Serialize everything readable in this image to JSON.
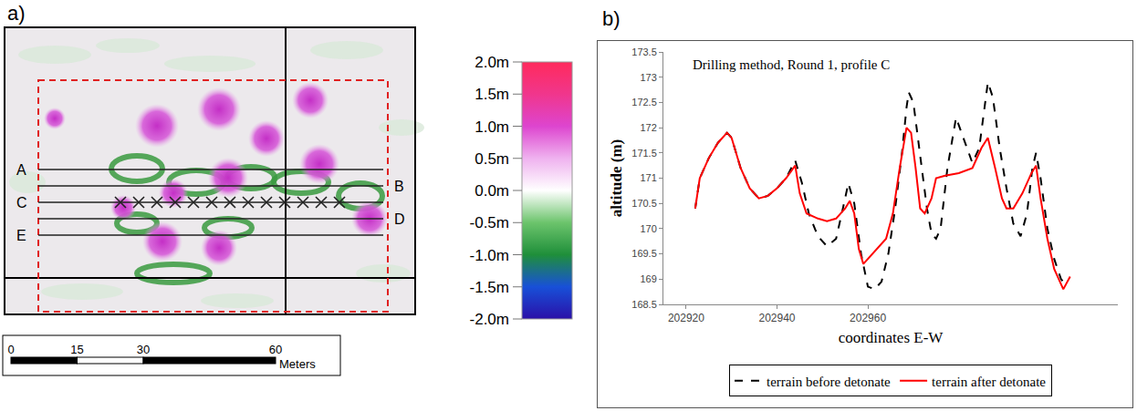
{
  "panel_letters": [
    "a)",
    "b)"
  ],
  "map": {
    "profile_lines": [
      "A",
      "B",
      "C",
      "D",
      "E"
    ],
    "colorbar": {
      "range": [
        -2,
        2
      ],
      "ticks": [
        {
          "value": 2,
          "label": "2.0m"
        },
        {
          "value": 1.5,
          "label": "1.5m"
        },
        {
          "value": 1,
          "label": "1.0m"
        },
        {
          "value": 0.5,
          "label": "0.5m"
        },
        {
          "value": 0,
          "label": "0.0m"
        },
        {
          "value": -0.5,
          "label": "-0.5m"
        },
        {
          "value": -1,
          "label": "-1.0m"
        },
        {
          "value": -1.5,
          "label": "-1.5m"
        },
        {
          "value": -2,
          "label": "-2.0m"
        }
      ]
    },
    "scale_bar": {
      "ticks": [
        0,
        15,
        30,
        60
      ],
      "unit": "Meters"
    }
  },
  "chart_data": {
    "type": "line",
    "title": "Drilling method, Round 1, profile C",
    "x_label": "coordinates E-W",
    "y_label": "altitude (m)",
    "xlim": [
      202915,
      203015
    ],
    "xticks": [
      202920,
      202940,
      202960
    ],
    "ylim": [
      168.5,
      173.5
    ],
    "yticks": [
      168.5,
      169,
      169.5,
      170,
      170.5,
      171,
      171.5,
      172,
      172.5,
      173,
      173.5
    ],
    "grid": false,
    "legend": "bottom",
    "series": [
      {
        "name": "terrain before detonate",
        "color": "#000000",
        "line_style": "dashed",
        "x": [
          202922,
          202923,
          202925,
          202927,
          202929,
          202930,
          202932,
          202934,
          202936,
          202938,
          202940,
          202942,
          202944,
          202945.5,
          202947,
          202949,
          202951,
          202953,
          202954.5,
          202955.7,
          202957,
          202958.5,
          202960,
          202961.5,
          202963,
          202964.5,
          202966,
          202967.5,
          202968.5,
          202969,
          202970,
          202971.5,
          202973,
          202974,
          202975,
          202976,
          202977.5,
          202979.4,
          202981,
          202983,
          202984.5,
          202986.4,
          202987.5,
          202989,
          202990.5,
          202992,
          202993.6,
          202995,
          202996.2,
          202997,
          202998,
          202999.5,
          203001,
          203002.5,
          203004
        ],
        "values": [
          170.4,
          171.0,
          171.4,
          171.7,
          171.9,
          171.8,
          171.2,
          170.8,
          170.6,
          170.65,
          170.8,
          171.0,
          171.35,
          170.9,
          170.3,
          169.85,
          169.65,
          169.8,
          170.4,
          170.9,
          170.5,
          169.5,
          168.85,
          168.8,
          168.95,
          169.5,
          170.4,
          171.5,
          172.4,
          172.7,
          172.5,
          171.5,
          170.4,
          169.9,
          169.8,
          170.0,
          171.2,
          172.2,
          171.8,
          171.3,
          171.6,
          172.9,
          172.6,
          171.6,
          170.8,
          170.1,
          169.85,
          170.3,
          171.2,
          171.5,
          171.0,
          170.0,
          169.4,
          169.0,
          168.85
        ]
      },
      {
        "name": "terrain after detonate",
        "color": "#ff0000",
        "line_style": "solid",
        "x": [
          202922,
          202923,
          202925,
          202927,
          202929,
          202930,
          202932,
          202934,
          202936,
          202938,
          202940,
          202942,
          202944,
          202945,
          202946.5,
          202949,
          202951,
          202953,
          202955,
          202956,
          202957,
          202958,
          202959,
          202960,
          202962,
          202964,
          202965.5,
          202967,
          202968.5,
          202969.5,
          202970.5,
          202971.5,
          202972.5,
          202974,
          202975,
          202977,
          202980,
          202983,
          202985,
          202986.4,
          202988,
          202989.5,
          202990.5,
          202992,
          202994,
          202996,
          202997,
          202998,
          202999.5,
          203001,
          203003,
          203004.5
        ],
        "values": [
          170.4,
          171.0,
          171.4,
          171.7,
          171.9,
          171.8,
          171.2,
          170.8,
          170.6,
          170.65,
          170.8,
          171.0,
          171.25,
          170.7,
          170.3,
          170.2,
          170.15,
          170.2,
          170.4,
          170.55,
          170.3,
          169.6,
          169.3,
          169.4,
          169.6,
          169.8,
          170.3,
          171.2,
          172.0,
          171.9,
          171.2,
          170.4,
          170.3,
          170.6,
          171.0,
          171.05,
          171.1,
          171.2,
          171.6,
          171.8,
          171.2,
          170.6,
          170.4,
          170.4,
          170.7,
          171.1,
          171.25,
          170.6,
          169.8,
          169.2,
          168.8,
          169.05
        ]
      }
    ]
  }
}
